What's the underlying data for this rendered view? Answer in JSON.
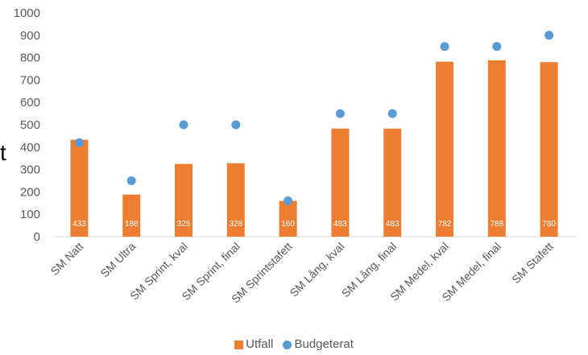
{
  "chart_data": {
    "type": "bar",
    "categories": [
      "SM Natt",
      "SM Ultra",
      "SM Sprint, kval",
      "SM Sprint, final",
      "SM Sprintstafett",
      "SM Lång, kval",
      "SM Lång, final",
      "SM Medel, kval",
      "SM Medel, final",
      "SM Stafett"
    ],
    "series": [
      {
        "name": "Utfall",
        "type": "bar",
        "color": "#ED7D31",
        "values": [
          433,
          188,
          325,
          328,
          160,
          483,
          483,
          782,
          788,
          780
        ],
        "data_labels": [
          "433",
          "188",
          "325",
          "328",
          "160",
          "483",
          "483",
          "782",
          "788",
          "780"
        ]
      },
      {
        "name": "Budgeterat",
        "type": "scatter",
        "color": "#5B9BD5",
        "values": [
          420,
          250,
          500,
          500,
          160,
          550,
          550,
          850,
          850,
          900
        ]
      }
    ],
    "ylim": [
      0,
      1000
    ],
    "yticks": [
      "0",
      "100",
      "200",
      "300",
      "400",
      "500",
      "600",
      "700",
      "800",
      "900",
      "1000"
    ],
    "grid": false,
    "legend_position": "bottom",
    "stray_text": "t"
  }
}
